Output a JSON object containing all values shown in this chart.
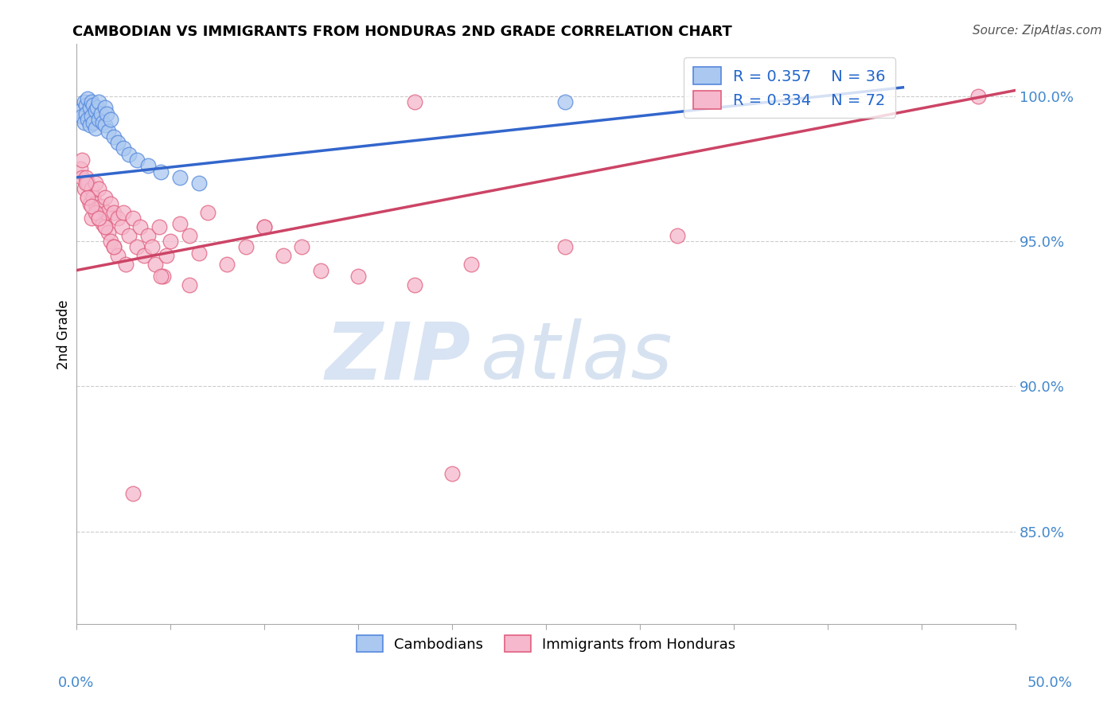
{
  "title": "CAMBODIAN VS IMMIGRANTS FROM HONDURAS 2ND GRADE CORRELATION CHART",
  "source": "Source: ZipAtlas.com",
  "ylabel": "2nd Grade",
  "ylabel_right_ticks": [
    "100.0%",
    "95.0%",
    "90.0%",
    "85.0%"
  ],
  "ylabel_right_values": [
    1.0,
    0.95,
    0.9,
    0.85
  ],
  "xmin": 0.0,
  "xmax": 0.5,
  "ymin": 0.818,
  "ymax": 1.018,
  "legend_r_blue": "R = 0.357",
  "legend_n_blue": "N = 36",
  "legend_r_pink": "R = 0.334",
  "legend_n_pink": "N = 72",
  "legend_label_blue": "Cambodians",
  "legend_label_pink": "Immigrants from Honduras",
  "blue_color": "#aac8f0",
  "pink_color": "#f5b8cc",
  "blue_edge_color": "#5588dd",
  "pink_edge_color": "#e06080",
  "blue_line_color": "#3366cc",
  "pink_line_color": "#cc4466",
  "blue_trend_x": [
    0.0,
    0.44
  ],
  "blue_trend_y": [
    0.972,
    1.003
  ],
  "pink_trend_x": [
    0.0,
    0.5
  ],
  "pink_trend_y": [
    0.94,
    1.002
  ],
  "cambodian_x": [
    0.002,
    0.003,
    0.004,
    0.004,
    0.005,
    0.005,
    0.006,
    0.006,
    0.007,
    0.007,
    0.008,
    0.008,
    0.009,
    0.009,
    0.01,
    0.01,
    0.011,
    0.012,
    0.012,
    0.013,
    0.014,
    0.015,
    0.015,
    0.016,
    0.017,
    0.018,
    0.02,
    0.022,
    0.025,
    0.028,
    0.032,
    0.038,
    0.045,
    0.055,
    0.065,
    0.26
  ],
  "cambodian_y": [
    0.995,
    0.993,
    0.998,
    0.991,
    0.997,
    0.994,
    0.999,
    0.992,
    0.996,
    0.99,
    0.998,
    0.993,
    0.997,
    0.991,
    0.995,
    0.989,
    0.996,
    0.998,
    0.992,
    0.994,
    0.991,
    0.996,
    0.99,
    0.994,
    0.988,
    0.992,
    0.986,
    0.984,
    0.982,
    0.98,
    0.978,
    0.976,
    0.974,
    0.972,
    0.97,
    0.998
  ],
  "honduras_x": [
    0.002,
    0.003,
    0.004,
    0.005,
    0.006,
    0.006,
    0.007,
    0.008,
    0.008,
    0.009,
    0.01,
    0.01,
    0.011,
    0.012,
    0.012,
    0.013,
    0.014,
    0.015,
    0.015,
    0.016,
    0.017,
    0.018,
    0.018,
    0.02,
    0.02,
    0.022,
    0.022,
    0.024,
    0.025,
    0.026,
    0.028,
    0.03,
    0.032,
    0.034,
    0.036,
    0.038,
    0.04,
    0.042,
    0.044,
    0.046,
    0.048,
    0.05,
    0.055,
    0.06,
    0.065,
    0.07,
    0.08,
    0.09,
    0.1,
    0.11,
    0.12,
    0.13,
    0.15,
    0.18,
    0.21,
    0.26,
    0.32,
    0.003,
    0.006,
    0.01,
    0.015,
    0.02,
    0.06,
    0.1,
    0.2,
    0.005,
    0.008,
    0.012,
    0.18,
    0.48,
    0.03,
    0.045
  ],
  "honduras_y": [
    0.975,
    0.972,
    0.968,
    0.972,
    0.965,
    0.97,
    0.963,
    0.968,
    0.958,
    0.965,
    0.97,
    0.963,
    0.96,
    0.968,
    0.958,
    0.962,
    0.956,
    0.965,
    0.955,
    0.96,
    0.953,
    0.963,
    0.95,
    0.96,
    0.948,
    0.958,
    0.945,
    0.955,
    0.96,
    0.942,
    0.952,
    0.958,
    0.948,
    0.955,
    0.945,
    0.952,
    0.948,
    0.942,
    0.955,
    0.938,
    0.945,
    0.95,
    0.956,
    0.952,
    0.946,
    0.96,
    0.942,
    0.948,
    0.955,
    0.945,
    0.948,
    0.94,
    0.938,
    0.935,
    0.942,
    0.948,
    0.952,
    0.978,
    0.965,
    0.96,
    0.955,
    0.948,
    0.935,
    0.955,
    0.87,
    0.97,
    0.962,
    0.958,
    0.998,
    1.0,
    0.863,
    0.938
  ]
}
